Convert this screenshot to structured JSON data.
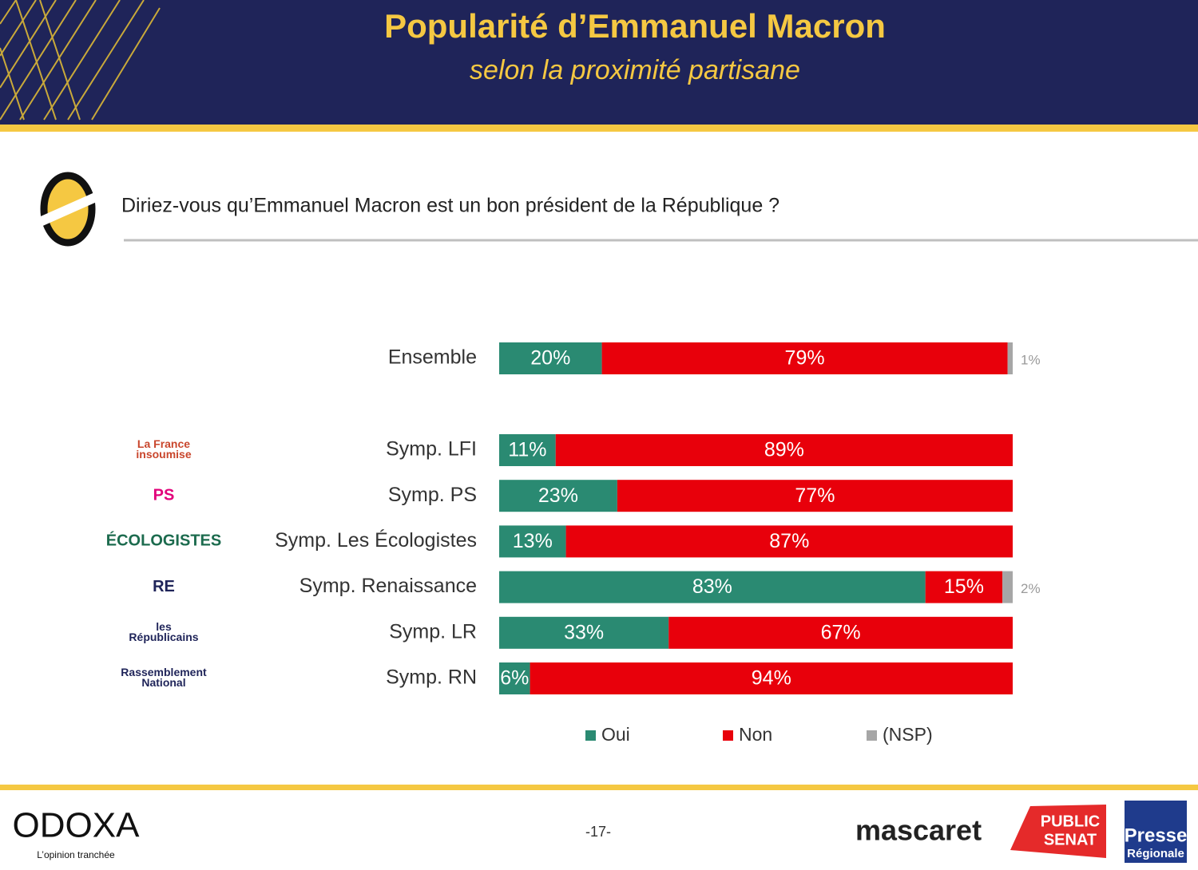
{
  "chart_data": {
    "type": "stacked-bar-horizontal",
    "title": "Popularité d’Emmanuel Macron",
    "subtitle": "selon la proximité partisane",
    "question": "Diriez-vous qu’Emmanuel Macron est un bon président de la République ?",
    "categories": [
      "Ensemble",
      "Symp. LFI",
      "Symp. PS",
      "Symp. Les Écologistes",
      "Symp. Renaissance",
      "Symp. LR",
      "Symp. RN"
    ],
    "xlim": [
      0,
      100
    ],
    "legend": "bottom",
    "series": [
      {
        "name": "Oui",
        "color": "#2a8a72",
        "values": [
          20,
          11,
          23,
          13,
          83,
          33,
          6
        ],
        "value_labels": [
          "20%",
          "11%",
          "23%",
          "13%",
          "83%",
          "33%",
          "6%"
        ]
      },
      {
        "name": "Non",
        "color": "#e8000b",
        "values": [
          79,
          89,
          77,
          87,
          15,
          67,
          94
        ],
        "value_labels": [
          "79%",
          "89%",
          "77%",
          "87%",
          "15%",
          "67%",
          "94%"
        ]
      },
      {
        "name": "(NSP)",
        "color": "#a6a6a6",
        "values": [
          1,
          null,
          null,
          null,
          2,
          null,
          null
        ],
        "value_labels": [
          "1%",
          null,
          null,
          null,
          "2%",
          null,
          null
        ]
      }
    ]
  },
  "party_logos": [
    [
      "La France",
      "insoumise"
    ],
    [
      "PS"
    ],
    [
      "ÉCOLOGISTES"
    ],
    [
      "RE"
    ],
    [
      "les",
      "Républicains"
    ],
    [
      "Rassemblement",
      "National"
    ]
  ],
  "footer": {
    "brand": "ODOXA",
    "tagline": "L’opinion tranchée",
    "page": "-17-",
    "partners": [
      "mascaret",
      "PUBLIC",
      "SENAT",
      "Presse",
      "Régionale"
    ]
  }
}
